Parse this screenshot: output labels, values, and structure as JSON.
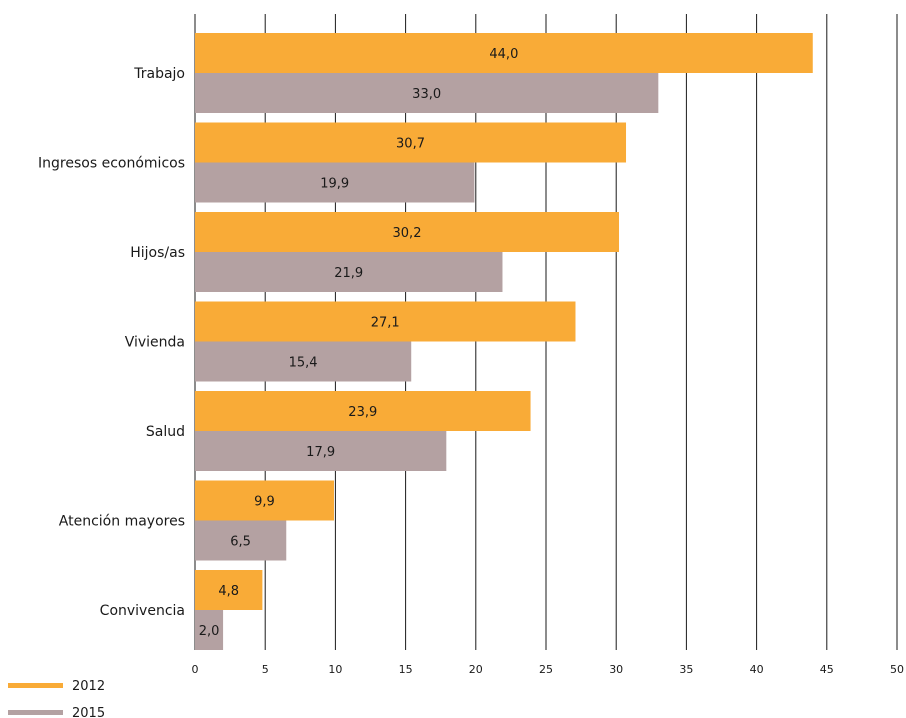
{
  "chart_data": {
    "type": "bar",
    "orientation": "horizontal",
    "categories": [
      "Trabajo",
      "Ingresos económicos",
      "Hijos/as",
      "Vivienda",
      "Salud",
      "Atención mayores",
      "Convivencia"
    ],
    "series": [
      {
        "name": "2012",
        "color": "#f9ab37",
        "values": [
          44.0,
          30.7,
          30.2,
          27.1,
          23.9,
          9.9,
          4.8
        ],
        "labels": [
          "44,0",
          "30,7",
          "30,2",
          "27,1",
          "23,9",
          "9,9",
          "4,8"
        ]
      },
      {
        "name": "2015",
        "color": "#b4a1a2",
        "values": [
          33.0,
          19.9,
          21.9,
          15.4,
          17.9,
          6.5,
          2.0
        ],
        "labels": [
          "33,0",
          "19,9",
          "21,9",
          "15,4",
          "17,9",
          "6,5",
          "2,0"
        ]
      }
    ],
    "xlim": [
      0,
      50
    ],
    "xticks": [
      "0",
      "5",
      "10",
      "15",
      "20",
      "25",
      "30",
      "35",
      "40",
      "45",
      "50"
    ],
    "grid": "vertical",
    "legend_position": "bottom-left",
    "title": "",
    "xlabel": "",
    "ylabel": ""
  }
}
